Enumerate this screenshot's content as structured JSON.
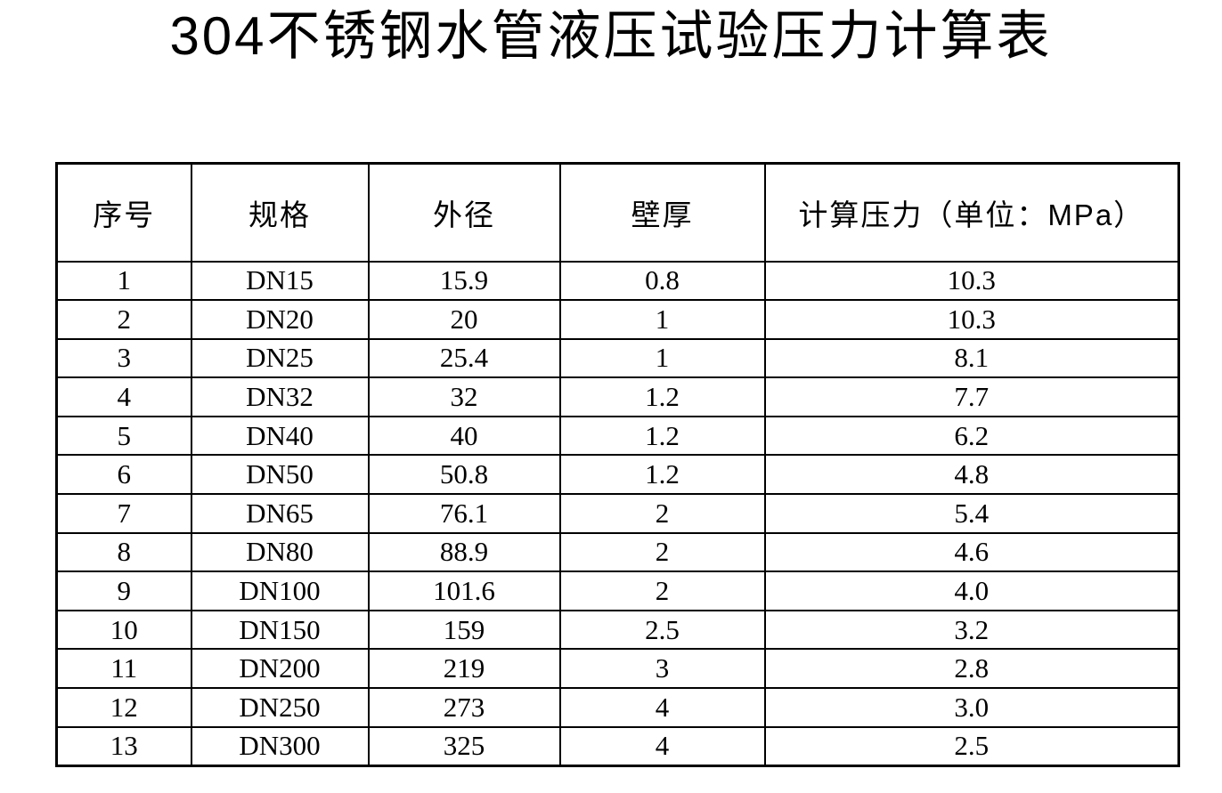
{
  "document": {
    "title": "304不锈钢水管液压试验压力计算表"
  },
  "table": {
    "headers": [
      "序号",
      "规格",
      "外径",
      "壁厚",
      "计算压力（单位：MPa）"
    ],
    "rows": [
      [
        "1",
        "DN15",
        "15.9",
        "0.8",
        "10.3"
      ],
      [
        "2",
        "DN20",
        "20",
        "1",
        "10.3"
      ],
      [
        "3",
        "DN25",
        "25.4",
        "1",
        "8.1"
      ],
      [
        "4",
        "DN32",
        "32",
        "1.2",
        "7.7"
      ],
      [
        "5",
        "DN40",
        "40",
        "1.2",
        "6.2"
      ],
      [
        "6",
        "DN50",
        "50.8",
        "1.2",
        "4.8"
      ],
      [
        "7",
        "DN65",
        "76.1",
        "2",
        "5.4"
      ],
      [
        "8",
        "DN80",
        "88.9",
        "2",
        "4.6"
      ],
      [
        "9",
        "DN100",
        "101.6",
        "2",
        "4.0"
      ],
      [
        "10",
        "DN150",
        "159",
        "2.5",
        "3.2"
      ],
      [
        "11",
        "DN200",
        "219",
        "3",
        "2.8"
      ],
      [
        "12",
        "DN250",
        "273",
        "4",
        "3.0"
      ],
      [
        "13",
        "DN300",
        "325",
        "4",
        "2.5"
      ]
    ],
    "pressure_unit": "MPa"
  },
  "colors": {
    "text": "#000000",
    "border": "#000000",
    "background": "#ffffff"
  },
  "chart_data": {
    "type": "table",
    "title": "304不锈钢水管液压试验压力计算表",
    "columns": [
      "序号",
      "规格",
      "外径",
      "壁厚",
      "计算压力（单位：MPa）"
    ],
    "specs": [
      "DN15",
      "DN20",
      "DN25",
      "DN32",
      "DN40",
      "DN50",
      "DN65",
      "DN80",
      "DN100",
      "DN150",
      "DN200",
      "DN250",
      "DN300"
    ],
    "outer_diameter": [
      15.9,
      20,
      25.4,
      32,
      40,
      50.8,
      76.1,
      88.9,
      101.6,
      159,
      219,
      273,
      325
    ],
    "wall_thickness": [
      0.8,
      1,
      1,
      1.2,
      1.2,
      1.2,
      2,
      2,
      2,
      2.5,
      3,
      4,
      4
    ],
    "calculated_pressure_mpa": [
      10.3,
      10.3,
      8.1,
      7.7,
      6.2,
      4.8,
      5.4,
      4.6,
      4.0,
      3.2,
      2.8,
      3.0,
      2.5
    ]
  }
}
